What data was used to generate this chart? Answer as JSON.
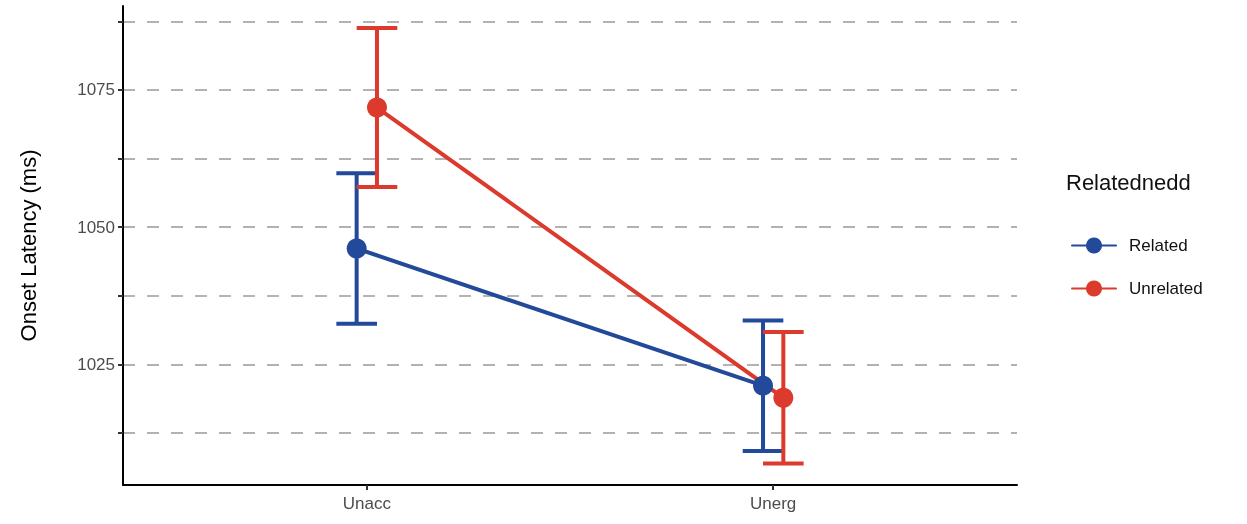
{
  "chart_data": {
    "type": "line",
    "ylabel": "Onset Latency (ms)",
    "legend_title": "Relatednedd",
    "categories": [
      "Unacc",
      "Unerg"
    ],
    "series": [
      {
        "name": "Related",
        "color": "#234a9a",
        "values": [
          1046.1,
          1021.1
        ],
        "errors": [
          13.7,
          11.9
        ]
      },
      {
        "name": "Unrelated",
        "color": "#dc3a2c",
        "values": [
          1071.8,
          1018.9
        ],
        "errors": [
          14.5,
          12.0
        ]
      }
    ],
    "ylim": [
      1003,
      1090.3
    ],
    "yticks": [
      {
        "value": 1012.5,
        "label": null
      },
      1025,
      {
        "value": 1037.5,
        "label": null
      },
      1050,
      {
        "value": 1062.5,
        "label": null
      },
      1075,
      {
        "value": 1087.5,
        "label": null
      }
    ],
    "grid": "y",
    "legend": "right",
    "marker": "circle",
    "line_style": "solid"
  }
}
